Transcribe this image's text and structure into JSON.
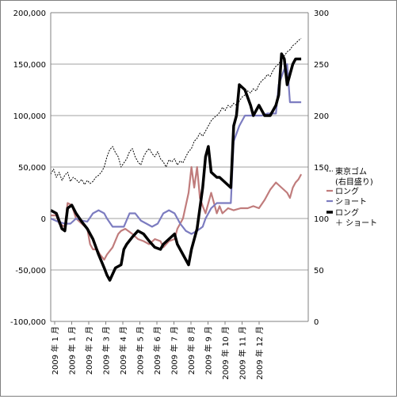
{
  "chart_data": {
    "type": "line",
    "title": "",
    "y_left": {
      "min": -100000,
      "max": 200000,
      "step": 50000,
      "tick_labels": [
        "200,000",
        "150,000",
        "100,000",
        "50,000",
        "0",
        "-50,000",
        "-100,000"
      ]
    },
    "y_right": {
      "min": 0,
      "max": 300,
      "step": 50,
      "tick_labels": [
        "300",
        "250",
        "200",
        "150",
        "100",
        "50",
        "0"
      ]
    },
    "x_tick_labels": [
      "2009 年 1 月",
      "2009 年 1 月",
      "2009 年 2 月",
      "2009 年 3 月",
      "2009 年 4 月",
      "2009 年 5 月",
      "2009 年 6 月",
      "2009 年 7 月",
      "2009 年 8 月",
      "2009 年 9 月",
      "2009 年 10 月",
      "2009 年 11 月",
      "2009 年 12 月"
    ],
    "grid": true,
    "legend_position": "right",
    "series": [
      {
        "name": "東京ゴム（右目盛り）",
        "legend_lines": [
          "東京ゴム",
          "(右目盛り)"
        ],
        "axis": "right",
        "color": "#000000",
        "style": "dashed",
        "points": [
          [
            0,
            143
          ],
          [
            0.2,
            148
          ],
          [
            0.4,
            140
          ],
          [
            0.6,
            145
          ],
          [
            0.8,
            137
          ],
          [
            1,
            142
          ],
          [
            1.2,
            145
          ],
          [
            1.4,
            136
          ],
          [
            1.6,
            140
          ],
          [
            1.8,
            138
          ],
          [
            2,
            135
          ],
          [
            2.2,
            138
          ],
          [
            2.4,
            133
          ],
          [
            2.6,
            137
          ],
          [
            2.8,
            134
          ],
          [
            3,
            136
          ],
          [
            3.2,
            140
          ],
          [
            3.4,
            142
          ],
          [
            3.6,
            145
          ],
          [
            3.8,
            150
          ],
          [
            4,
            160
          ],
          [
            4.2,
            167
          ],
          [
            4.4,
            170
          ],
          [
            4.6,
            164
          ],
          [
            4.8,
            160
          ],
          [
            5,
            150
          ],
          [
            5.2,
            154
          ],
          [
            5.4,
            158
          ],
          [
            5.6,
            165
          ],
          [
            5.8,
            168
          ],
          [
            6,
            160
          ],
          [
            6.2,
            155
          ],
          [
            6.4,
            152
          ],
          [
            6.6,
            160
          ],
          [
            6.8,
            165
          ],
          [
            7,
            168
          ],
          [
            7.2,
            163
          ],
          [
            7.4,
            160
          ],
          [
            7.6,
            165
          ],
          [
            7.8,
            158
          ],
          [
            8,
            155
          ],
          [
            8.2,
            150
          ],
          [
            8.4,
            157
          ],
          [
            8.6,
            155
          ],
          [
            8.8,
            158
          ],
          [
            9,
            152
          ],
          [
            9.2,
            156
          ],
          [
            9.4,
            154
          ],
          [
            9.6,
            160
          ],
          [
            9.8,
            165
          ],
          [
            10,
            168
          ],
          [
            10.2,
            175
          ],
          [
            10.4,
            178
          ],
          [
            10.6,
            183
          ],
          [
            10.8,
            180
          ],
          [
            11,
            185
          ],
          [
            11.2,
            190
          ],
          [
            11.4,
            195
          ],
          [
            11.6,
            198
          ],
          [
            11.8,
            200
          ],
          [
            12,
            203
          ],
          [
            12.2,
            208
          ],
          [
            12.4,
            205
          ],
          [
            12.6,
            210
          ],
          [
            12.8,
            208
          ],
          [
            13,
            212
          ],
          [
            13.2,
            210
          ],
          [
            13.4,
            214
          ],
          [
            13.6,
            218
          ],
          [
            13.8,
            220
          ],
          [
            14,
            224
          ],
          [
            14.2,
            222
          ],
          [
            14.4,
            226
          ],
          [
            14.6,
            224
          ],
          [
            14.8,
            230
          ],
          [
            15,
            234
          ],
          [
            15.2,
            236
          ],
          [
            15.4,
            240
          ],
          [
            15.6,
            238
          ],
          [
            15.8,
            244
          ],
          [
            16,
            248
          ],
          [
            16.2,
            250
          ],
          [
            16.4,
            255
          ],
          [
            16.6,
            258
          ],
          [
            16.8,
            262
          ],
          [
            17,
            264
          ],
          [
            17.2,
            268
          ],
          [
            17.4,
            270
          ],
          [
            17.6,
            273
          ],
          [
            17.8,
            275
          ]
        ]
      },
      {
        "name": "ロング",
        "legend_lines": [
          "ロング"
        ],
        "axis": "left",
        "color": "#c07c7c",
        "style": "solid",
        "points": [
          [
            0,
            3000
          ],
          [
            0.4,
            3000
          ],
          [
            0.6,
            -5000
          ],
          [
            1,
            -8000
          ],
          [
            1.2,
            15000
          ],
          [
            1.5,
            13000
          ],
          [
            1.8,
            0
          ],
          [
            2.2,
            -5000
          ],
          [
            2.6,
            -10000
          ],
          [
            2.8,
            -25000
          ],
          [
            3,
            -30000
          ],
          [
            3.3,
            -30000
          ],
          [
            3.5,
            -35000
          ],
          [
            3.8,
            -40000
          ],
          [
            4,
            -35000
          ],
          [
            4.4,
            -28000
          ],
          [
            4.8,
            -15000
          ],
          [
            5,
            -12000
          ],
          [
            5.3,
            -10000
          ],
          [
            5.8,
            -15000
          ],
          [
            6.2,
            -20000
          ],
          [
            6.6,
            -22000
          ],
          [
            7,
            -25000
          ],
          [
            7.4,
            -20000
          ],
          [
            7.8,
            -22000
          ],
          [
            8,
            -28000
          ],
          [
            8.4,
            -22000
          ],
          [
            8.8,
            -20000
          ],
          [
            9,
            -10000
          ],
          [
            9.4,
            0
          ],
          [
            9.8,
            25000
          ],
          [
            10,
            50000
          ],
          [
            10.2,
            30000
          ],
          [
            10.4,
            50000
          ],
          [
            10.6,
            20000
          ],
          [
            10.8,
            12000
          ],
          [
            11,
            5000
          ],
          [
            11.4,
            25000
          ],
          [
            11.8,
            5000
          ],
          [
            12,
            12000
          ],
          [
            12.2,
            5000
          ],
          [
            12.6,
            10000
          ],
          [
            13,
            8000
          ],
          [
            13.5,
            10000
          ],
          [
            14,
            10000
          ],
          [
            14.4,
            12000
          ],
          [
            14.8,
            10000
          ],
          [
            15.2,
            18000
          ],
          [
            15.6,
            28000
          ],
          [
            16,
            35000
          ],
          [
            16.4,
            30000
          ],
          [
            16.8,
            25000
          ],
          [
            17,
            20000
          ],
          [
            17.2,
            30000
          ],
          [
            17.4,
            35000
          ],
          [
            17.6,
            38000
          ],
          [
            17.8,
            43000
          ]
        ]
      },
      {
        "name": "ショート",
        "legend_lines": [
          "ショート"
        ],
        "axis": "left",
        "color": "#7c7cc0",
        "style": "solid",
        "points": [
          [
            0,
            0
          ],
          [
            0.5,
            -3000
          ],
          [
            1,
            -5000
          ],
          [
            1.4,
            -5000
          ],
          [
            1.8,
            0
          ],
          [
            2.2,
            -2000
          ],
          [
            2.6,
            -3000
          ],
          [
            3,
            5000
          ],
          [
            3.4,
            8000
          ],
          [
            3.8,
            5000
          ],
          [
            4,
            0
          ],
          [
            4.4,
            -8000
          ],
          [
            4.8,
            -8000
          ],
          [
            5.2,
            -8000
          ],
          [
            5.6,
            5000
          ],
          [
            6,
            5000
          ],
          [
            6.4,
            -2000
          ],
          [
            6.8,
            -5000
          ],
          [
            7.2,
            -8000
          ],
          [
            7.6,
            -5000
          ],
          [
            8,
            5000
          ],
          [
            8.4,
            8000
          ],
          [
            8.8,
            5000
          ],
          [
            9.2,
            -5000
          ],
          [
            9.6,
            -12000
          ],
          [
            10,
            -15000
          ],
          [
            10.4,
            -12000
          ],
          [
            10.8,
            -8000
          ],
          [
            11,
            0
          ],
          [
            11.4,
            10000
          ],
          [
            11.8,
            15000
          ],
          [
            12,
            15000
          ],
          [
            12.4,
            15000
          ],
          [
            12.8,
            15000
          ],
          [
            13,
            75000
          ],
          [
            13.4,
            90000
          ],
          [
            13.8,
            100000
          ],
          [
            14.2,
            100000
          ],
          [
            14.6,
            100000
          ],
          [
            15,
            100000
          ],
          [
            15.4,
            102000
          ],
          [
            15.8,
            102000
          ],
          [
            16,
            102000
          ],
          [
            16.2,
            130000
          ],
          [
            16.6,
            145000
          ],
          [
            16.8,
            150000
          ],
          [
            17,
            113000
          ],
          [
            17.4,
            113000
          ],
          [
            17.8,
            113000
          ]
        ]
      },
      {
        "name": "ロング ＋ ショート",
        "legend_lines": [
          "ロング",
          "＋ ショート"
        ],
        "axis": "left",
        "color": "#000000",
        "style": "solid-thick",
        "points": [
          [
            0,
            8000
          ],
          [
            0.4,
            5000
          ],
          [
            0.8,
            -10000
          ],
          [
            1,
            -12000
          ],
          [
            1.2,
            10000
          ],
          [
            1.5,
            13000
          ],
          [
            1.8,
            5000
          ],
          [
            2.2,
            -3000
          ],
          [
            2.6,
            -10000
          ],
          [
            3,
            -20000
          ],
          [
            3.4,
            -35000
          ],
          [
            3.8,
            -48000
          ],
          [
            4,
            -55000
          ],
          [
            4.2,
            -60000
          ],
          [
            4.6,
            -48000
          ],
          [
            5,
            -45000
          ],
          [
            5.2,
            -30000
          ],
          [
            5.4,
            -25000
          ],
          [
            5.8,
            -18000
          ],
          [
            6.2,
            -12000
          ],
          [
            6.6,
            -15000
          ],
          [
            7,
            -22000
          ],
          [
            7.4,
            -28000
          ],
          [
            7.8,
            -30000
          ],
          [
            8,
            -25000
          ],
          [
            8.4,
            -20000
          ],
          [
            8.8,
            -15000
          ],
          [
            9,
            -25000
          ],
          [
            9.4,
            -35000
          ],
          [
            9.8,
            -45000
          ],
          [
            10,
            -30000
          ],
          [
            10.4,
            -10000
          ],
          [
            10.8,
            30000
          ],
          [
            11,
            60000
          ],
          [
            11.2,
            70000
          ],
          [
            11.4,
            45000
          ],
          [
            11.8,
            40000
          ],
          [
            12,
            40000
          ],
          [
            12.4,
            35000
          ],
          [
            12.8,
            30000
          ],
          [
            13,
            90000
          ],
          [
            13.2,
            100000
          ],
          [
            13.4,
            130000
          ],
          [
            13.8,
            125000
          ],
          [
            14.2,
            110000
          ],
          [
            14.4,
            100000
          ],
          [
            14.8,
            110000
          ],
          [
            15.2,
            100000
          ],
          [
            15.6,
            100000
          ],
          [
            16,
            110000
          ],
          [
            16.2,
            120000
          ],
          [
            16.4,
            160000
          ],
          [
            16.6,
            155000
          ],
          [
            16.8,
            130000
          ],
          [
            17,
            140000
          ],
          [
            17.2,
            150000
          ],
          [
            17.4,
            155000
          ],
          [
            17.6,
            155000
          ],
          [
            17.8,
            155000
          ]
        ]
      }
    ]
  }
}
